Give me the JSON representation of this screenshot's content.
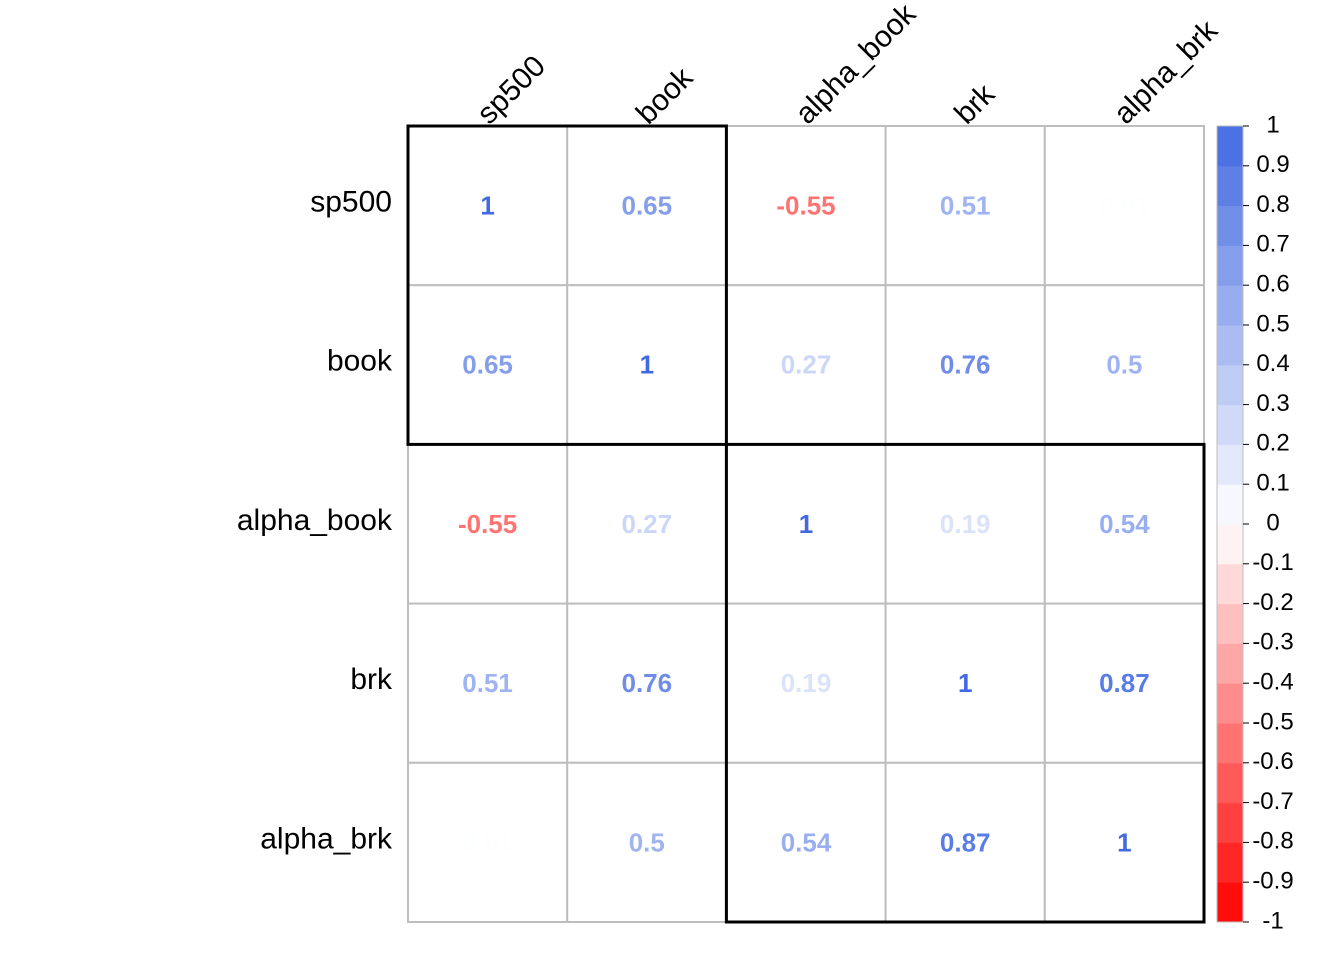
{
  "chart_data": {
    "type": "heatmap",
    "x": [
      "sp500",
      "book",
      "alpha_book",
      "brk",
      "alpha_brk"
    ],
    "y": [
      "sp500",
      "book",
      "alpha_book",
      "brk",
      "alpha_brk"
    ],
    "values": [
      [
        1,
        0.65,
        -0.55,
        0.51,
        0.01
      ],
      [
        0.65,
        1,
        0.27,
        0.76,
        0.5
      ],
      [
        -0.55,
        0.27,
        1,
        0.19,
        0.54
      ],
      [
        0.51,
        0.76,
        0.19,
        1,
        0.87
      ],
      [
        0.01,
        0.5,
        0.54,
        0.87,
        1
      ]
    ],
    "colors": {
      "low": "#FF0000",
      "mid": "#FFFFFF",
      "high": "#4169E1"
    },
    "clim": [
      -1,
      1
    ],
    "cticks": [
      1,
      0.9,
      0.8,
      0.7,
      0.6,
      0.5,
      0.4,
      0.3,
      0.2,
      0.1,
      0,
      -0.1,
      -0.2,
      -0.3,
      -0.4,
      -0.5,
      -0.6,
      -0.7,
      -0.8,
      -0.9,
      -1
    ],
    "clusters": [
      2,
      3
    ]
  }
}
